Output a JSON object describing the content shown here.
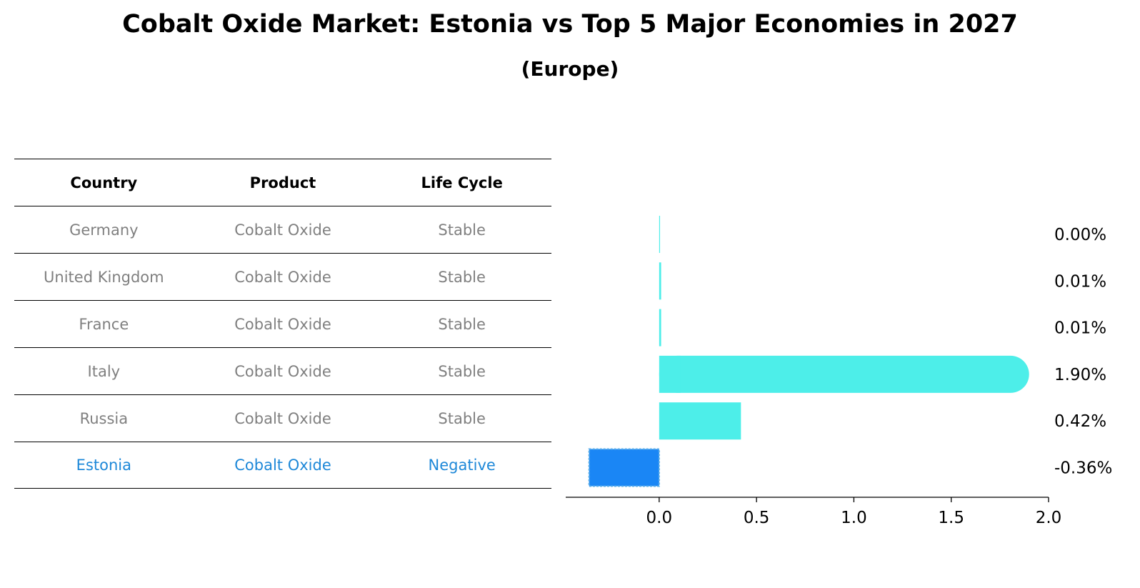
{
  "title": "Cobalt Oxide Market: Estonia vs Top 5 Major Economies in 2027",
  "subtitle": "(Europe)",
  "table": {
    "headers": [
      "Country",
      "Product",
      "Life Cycle"
    ],
    "rows": [
      {
        "country": "Germany",
        "product": "Cobalt Oxide",
        "life_cycle": "Stable"
      },
      {
        "country": "United Kingdom",
        "product": "Cobalt Oxide",
        "life_cycle": "Stable"
      },
      {
        "country": "France",
        "product": "Cobalt Oxide",
        "life_cycle": "Stable"
      },
      {
        "country": "Italy",
        "product": "Cobalt Oxide",
        "life_cycle": "Stable"
      },
      {
        "country": "Russia",
        "product": "Cobalt Oxide",
        "life_cycle": "Stable"
      },
      {
        "country": "Estonia",
        "product": "Cobalt Oxide",
        "life_cycle": "Negative"
      }
    ]
  },
  "chart_data": {
    "type": "bar",
    "orientation": "horizontal",
    "categories": [
      "Germany",
      "United Kingdom",
      "France",
      "Italy",
      "Russia",
      "Estonia"
    ],
    "values": [
      0.0,
      0.01,
      0.01,
      1.9,
      0.42,
      -0.36
    ],
    "value_labels": [
      "0.00%",
      "0.01%",
      "0.01%",
      "1.90%",
      "0.42%",
      "-0.36%"
    ],
    "xlim": [
      -0.48,
      2.0
    ],
    "xticks": [
      "0.0",
      "0.5",
      "1.0",
      "1.5",
      "2.0"
    ],
    "xtick_values": [
      0.0,
      0.5,
      1.0,
      1.5,
      2.0
    ],
    "highlight_category": "Estonia",
    "colors": {
      "default": "#4deee9",
      "highlight": "#1a86f5",
      "highlight_text": "#1e88d8",
      "muted_text": "#808080"
    }
  }
}
